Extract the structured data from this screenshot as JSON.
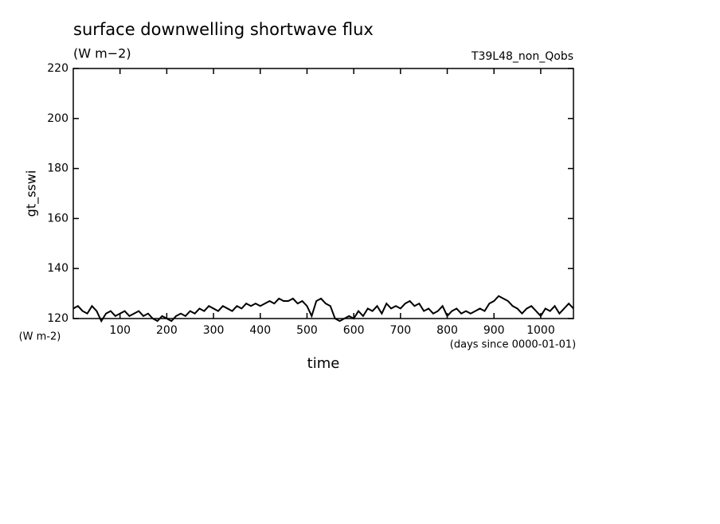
{
  "chart_data": {
    "type": "line",
    "title": "surface downwelling shortwave flux",
    "subtitle": "(W m−2)",
    "annotation": "T39L48_non_Qobs",
    "y_label": "gt_sswi",
    "y_unit": "(W m-2)",
    "x_unit": "(days since 0000-01-01)",
    "x_label": "time",
    "xlim": [
      0,
      1070
    ],
    "ylim": [
      120,
      220
    ],
    "xticks": [
      100,
      200,
      300,
      400,
      500,
      600,
      700,
      800,
      900,
      1000
    ],
    "yticks": [
      120,
      140,
      160,
      180,
      200,
      220
    ],
    "grid": false,
    "series": [
      {
        "name": "gt_sswi",
        "color": "#000000",
        "x": [
          0,
          10,
          20,
          30,
          40,
          50,
          60,
          70,
          80,
          90,
          100,
          110,
          120,
          130,
          140,
          150,
          160,
          170,
          180,
          190,
          200,
          210,
          220,
          230,
          240,
          250,
          260,
          270,
          280,
          290,
          300,
          310,
          320,
          330,
          340,
          350,
          360,
          370,
          380,
          390,
          400,
          410,
          420,
          430,
          440,
          450,
          460,
          470,
          480,
          490,
          500,
          510,
          520,
          530,
          540,
          550,
          560,
          570,
          580,
          590,
          600,
          610,
          620,
          630,
          640,
          650,
          660,
          670,
          680,
          690,
          700,
          710,
          720,
          730,
          740,
          750,
          760,
          770,
          780,
          790,
          800,
          810,
          820,
          830,
          840,
          850,
          860,
          870,
          880,
          890,
          900,
          910,
          920,
          930,
          940,
          950,
          960,
          970,
          980,
          990,
          1000,
          1010,
          1020,
          1030,
          1040,
          1050,
          1060,
          1070
        ],
        "values": [
          124,
          125,
          123,
          122,
          125,
          123,
          119,
          122,
          123,
          121,
          122,
          123,
          121,
          122,
          123,
          121,
          122,
          120,
          119,
          121,
          120,
          119,
          121,
          122,
          121,
          123,
          122,
          124,
          123,
          125,
          124,
          123,
          125,
          124,
          123,
          125,
          124,
          126,
          125,
          126,
          125,
          126,
          127,
          126,
          128,
          127,
          127,
          128,
          126,
          127,
          125,
          121,
          127,
          128,
          126,
          125,
          120,
          119,
          120,
          121,
          120,
          123,
          121,
          124,
          123,
          125,
          122,
          126,
          124,
          125,
          124,
          126,
          127,
          125,
          126,
          123,
          124,
          122,
          123,
          125,
          121,
          123,
          124,
          122,
          123,
          122,
          123,
          124,
          123,
          126,
          127,
          129,
          128,
          127,
          125,
          124,
          122,
          124,
          125,
          123,
          121,
          124,
          123,
          125,
          122,
          124,
          126,
          124
        ]
      }
    ]
  }
}
